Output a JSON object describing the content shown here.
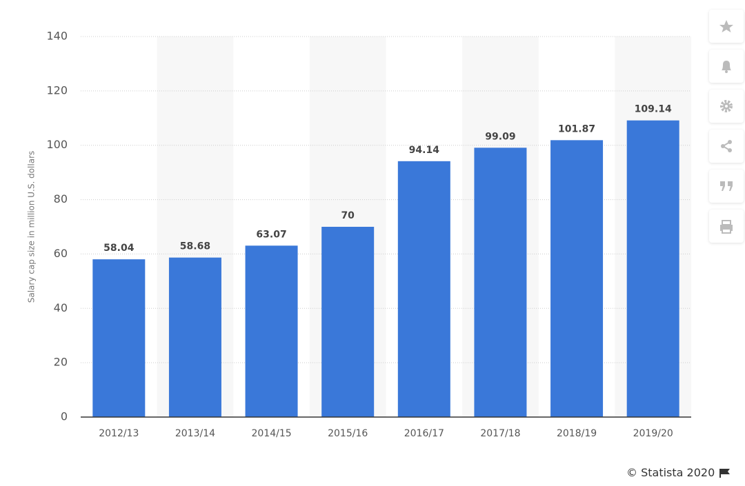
{
  "chart_data": {
    "type": "bar",
    "y_axis_label": "Salary cap size in million U.S. dollars",
    "categories": [
      "2012/13",
      "2013/14",
      "2014/15",
      "2015/16",
      "2016/17",
      "2017/18",
      "2018/19",
      "2019/20"
    ],
    "values": [
      58.04,
      58.68,
      63.07,
      70,
      94.14,
      99.09,
      101.87,
      109.14
    ],
    "color": "#3a78d9",
    "ylim": [
      0,
      140
    ],
    "yticks": [
      0,
      20,
      40,
      60,
      80,
      100,
      120,
      140
    ],
    "grid": true
  },
  "footer": {
    "source": "© Statista 2020"
  }
}
